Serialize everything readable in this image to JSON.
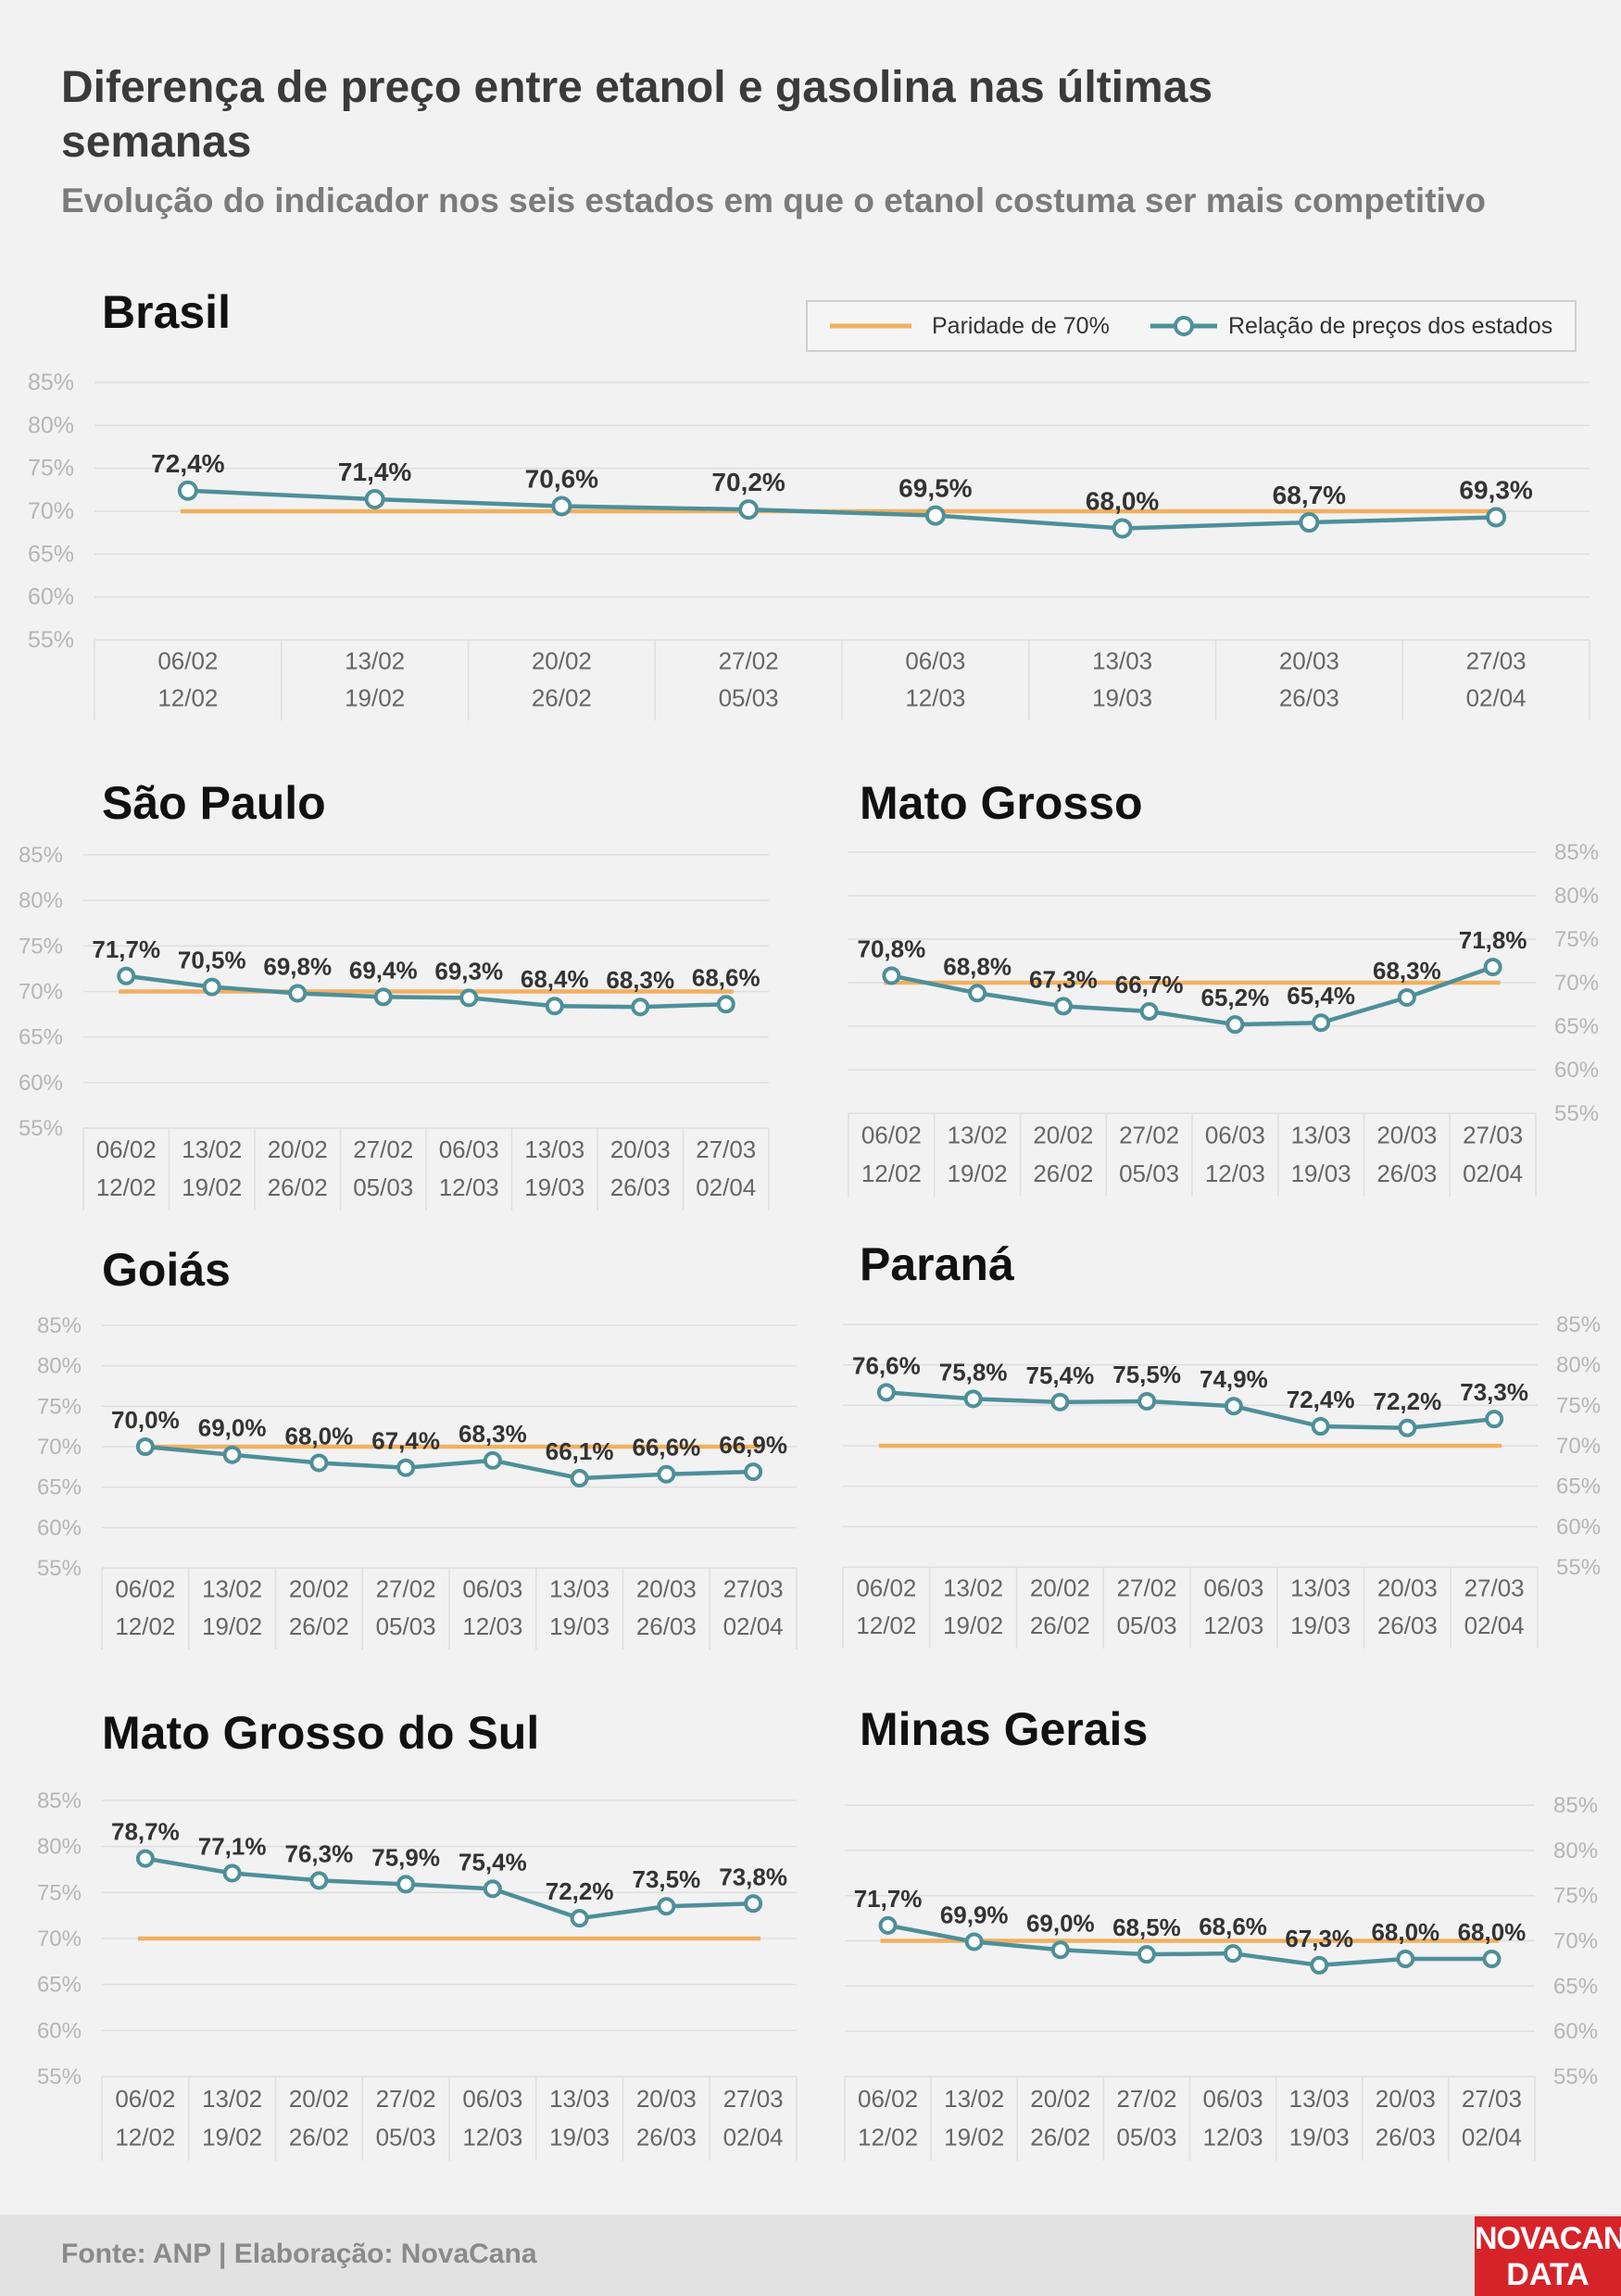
{
  "header": {
    "title": "Diferença de preço entre etanol e gasolina nas últimas semanas",
    "subtitle": "Evolução do indicador nos seis estados em que o etanol costuma ser mais competitivo"
  },
  "legend": {
    "parity_label": "Paridade de 70%",
    "series_label": "Relação de preços dos estados"
  },
  "colors": {
    "parity": "#f0b060",
    "series": "#4e8f99",
    "grid": "#dedede",
    "tick": "#b5b5b5",
    "category": "#666666",
    "value_label": "#333333"
  },
  "footer": {
    "source": "Fonte: ANP | Elaboração: NovaCana",
    "logo_line1": "NOVACANA",
    "logo_line2": "DATA"
  },
  "chart_data": [
    {
      "type": "line",
      "title": "Brasil",
      "categories": [
        "06/02 12/02",
        "13/02 19/02",
        "20/02 26/02",
        "27/02 05/03",
        "06/03 12/03",
        "13/03 19/03",
        "20/03 26/03",
        "27/03 02/04"
      ],
      "category_lines": [
        [
          "06/02",
          "12/02"
        ],
        [
          "13/02",
          "19/02"
        ],
        [
          "20/02",
          "26/02"
        ],
        [
          "27/02",
          "05/03"
        ],
        [
          "06/03",
          "12/03"
        ],
        [
          "13/03",
          "19/03"
        ],
        [
          "20/03",
          "26/03"
        ],
        [
          "27/03",
          "02/04"
        ]
      ],
      "series": [
        {
          "name": "Relação de preços dos estados",
          "values": [
            72.4,
            71.4,
            70.6,
            70.2,
            69.5,
            68.0,
            68.7,
            69.3
          ],
          "labels": [
            "72,4%",
            "71,4%",
            "70,6%",
            "70,2%",
            "69,5%",
            "68,0%",
            "68,7%",
            "69,3%"
          ]
        },
        {
          "name": "Paridade de 70%",
          "values": [
            70,
            70,
            70,
            70,
            70,
            70,
            70,
            70
          ]
        }
      ],
      "yticks": [
        "85%",
        "80%",
        "75%",
        "70%",
        "65%",
        "60%",
        "55%"
      ],
      "ylim": [
        55,
        85
      ],
      "grid": true,
      "legend": "top-right"
    },
    {
      "type": "line",
      "title": "São Paulo",
      "categories": [
        "06/02 12/02",
        "13/02 19/02",
        "20/02 26/02",
        "27/02 05/03",
        "06/03 12/03",
        "13/03 19/03",
        "20/03 26/03",
        "27/03 02/04"
      ],
      "category_lines": [
        [
          "06/02",
          "12/02"
        ],
        [
          "13/02",
          "19/02"
        ],
        [
          "20/02",
          "26/02"
        ],
        [
          "27/02",
          "05/03"
        ],
        [
          "06/03",
          "12/03"
        ],
        [
          "13/03",
          "19/03"
        ],
        [
          "20/03",
          "26/03"
        ],
        [
          "27/03",
          "02/04"
        ]
      ],
      "series": [
        {
          "name": "Relação de preços dos estados",
          "values": [
            71.7,
            70.5,
            69.8,
            69.4,
            69.3,
            68.4,
            68.3,
            68.6
          ],
          "labels": [
            "71,7%",
            "70,5%",
            "69,8%",
            "69,4%",
            "69,3%",
            "68,4%",
            "68,3%",
            "68,6%"
          ]
        },
        {
          "name": "Paridade de 70%",
          "values": [
            70,
            70,
            70,
            70,
            70,
            70,
            70,
            70
          ]
        }
      ],
      "yticks": [
        "85%",
        "80%",
        "75%",
        "70%",
        "65%",
        "60%",
        "55%"
      ],
      "ylim": [
        55,
        85
      ],
      "grid": true
    },
    {
      "type": "line",
      "title": "Mato Grosso",
      "categories": [
        "06/02 12/02",
        "13/02 19/02",
        "20/02 26/02",
        "27/02 05/03",
        "06/03 12/03",
        "13/03 19/03",
        "20/03 26/03",
        "27/03 02/04"
      ],
      "category_lines": [
        [
          "06/02",
          "12/02"
        ],
        [
          "13/02",
          "19/02"
        ],
        [
          "20/02",
          "26/02"
        ],
        [
          "27/02",
          "05/03"
        ],
        [
          "06/03",
          "12/03"
        ],
        [
          "13/03",
          "19/03"
        ],
        [
          "20/03",
          "26/03"
        ],
        [
          "27/03",
          "02/04"
        ]
      ],
      "series": [
        {
          "name": "Relação de preços dos estados",
          "values": [
            70.8,
            68.8,
            67.3,
            66.7,
            65.2,
            65.4,
            68.3,
            71.8
          ],
          "labels": [
            "70,8%",
            "68,8%",
            "67,3%",
            "66,7%",
            "65,2%",
            "65,4%",
            "68,3%",
            "71,8%"
          ]
        },
        {
          "name": "Paridade de 70%",
          "values": [
            70,
            70,
            70,
            70,
            70,
            70,
            70,
            70
          ]
        }
      ],
      "yticks": [
        "85%",
        "80%",
        "75%",
        "70%",
        "65%",
        "60%",
        "55%"
      ],
      "ylim": [
        55,
        85
      ],
      "grid": true
    },
    {
      "type": "line",
      "title": "Goiás",
      "categories": [
        "06/02 12/02",
        "13/02 19/02",
        "20/02 26/02",
        "27/02 05/03",
        "06/03 12/03",
        "13/03 19/03",
        "20/03 26/03",
        "27/03 02/04"
      ],
      "category_lines": [
        [
          "06/02",
          "12/02"
        ],
        [
          "13/02",
          "19/02"
        ],
        [
          "20/02",
          "26/02"
        ],
        [
          "27/02",
          "05/03"
        ],
        [
          "06/03",
          "12/03"
        ],
        [
          "13/03",
          "19/03"
        ],
        [
          "20/03",
          "26/03"
        ],
        [
          "27/03",
          "02/04"
        ]
      ],
      "series": [
        {
          "name": "Relação de preços dos estados",
          "values": [
            70.0,
            69.0,
            68.0,
            67.4,
            68.3,
            66.1,
            66.6,
            66.9
          ],
          "labels": [
            "70,0%",
            "69,0%",
            "68,0%",
            "67,4%",
            "68,3%",
            "66,1%",
            "66,6%",
            "66,9%"
          ]
        },
        {
          "name": "Paridade de 70%",
          "values": [
            70,
            70,
            70,
            70,
            70,
            70,
            70,
            70
          ]
        }
      ],
      "yticks": [
        "85%",
        "80%",
        "75%",
        "70%",
        "65%",
        "60%",
        "55%"
      ],
      "ylim": [
        55,
        85
      ],
      "grid": true
    },
    {
      "type": "line",
      "title": "Paraná",
      "categories": [
        "06/02 12/02",
        "13/02 19/02",
        "20/02 26/02",
        "27/02 05/03",
        "06/03 12/03",
        "13/03 19/03",
        "20/03 26/03",
        "27/03 02/04"
      ],
      "category_lines": [
        [
          "06/02",
          "12/02"
        ],
        [
          "13/02",
          "19/02"
        ],
        [
          "20/02",
          "26/02"
        ],
        [
          "27/02",
          "05/03"
        ],
        [
          "06/03",
          "12/03"
        ],
        [
          "13/03",
          "19/03"
        ],
        [
          "20/03",
          "26/03"
        ],
        [
          "27/03",
          "02/04"
        ]
      ],
      "series": [
        {
          "name": "Relação de preços dos estados",
          "values": [
            76.6,
            75.8,
            75.4,
            75.5,
            74.9,
            72.4,
            72.2,
            73.3
          ],
          "labels": [
            "76,6%",
            "75,8%",
            "75,4%",
            "75,5%",
            "74,9%",
            "72,4%",
            "72,2%",
            "73,3%"
          ]
        },
        {
          "name": "Paridade de 70%",
          "values": [
            70,
            70,
            70,
            70,
            70,
            70,
            70,
            70
          ]
        }
      ],
      "yticks": [
        "85%",
        "80%",
        "75%",
        "70%",
        "65%",
        "60%",
        "55%"
      ],
      "ylim": [
        55,
        85
      ],
      "grid": true
    },
    {
      "type": "line",
      "title": "Mato Grosso do Sul",
      "categories": [
        "06/02 12/02",
        "13/02 19/02",
        "20/02 26/02",
        "27/02 05/03",
        "06/03 12/03",
        "13/03 19/03",
        "20/03 26/03",
        "27/03 02/04"
      ],
      "category_lines": [
        [
          "06/02",
          "12/02"
        ],
        [
          "13/02",
          "19/02"
        ],
        [
          "20/02",
          "26/02"
        ],
        [
          "27/02",
          "05/03"
        ],
        [
          "06/03",
          "12/03"
        ],
        [
          "13/03",
          "19/03"
        ],
        [
          "20/03",
          "26/03"
        ],
        [
          "27/03",
          "02/04"
        ]
      ],
      "series": [
        {
          "name": "Relação de preços dos estados",
          "values": [
            78.7,
            77.1,
            76.3,
            75.9,
            75.4,
            72.2,
            73.5,
            73.8
          ],
          "labels": [
            "78,7%",
            "77,1%",
            "76,3%",
            "75,9%",
            "75,4%",
            "72,2%",
            "73,5%",
            "73,8%"
          ]
        },
        {
          "name": "Paridade de 70%",
          "values": [
            70,
            70,
            70,
            70,
            70,
            70,
            70,
            70
          ]
        }
      ],
      "yticks": [
        "85%",
        "80%",
        "75%",
        "70%",
        "65%",
        "60%",
        "55%"
      ],
      "ylim": [
        55,
        85
      ],
      "grid": true
    },
    {
      "type": "line",
      "title": "Minas Gerais",
      "categories": [
        "06/02 12/02",
        "13/02 19/02",
        "20/02 26/02",
        "27/02 05/03",
        "06/03 12/03",
        "13/03 19/03",
        "20/03 26/03",
        "27/03 02/04"
      ],
      "category_lines": [
        [
          "06/02",
          "12/02"
        ],
        [
          "13/02",
          "19/02"
        ],
        [
          "20/02",
          "26/02"
        ],
        [
          "27/02",
          "05/03"
        ],
        [
          "06/03",
          "12/03"
        ],
        [
          "13/03",
          "19/03"
        ],
        [
          "20/03",
          "26/03"
        ],
        [
          "27/03",
          "02/04"
        ]
      ],
      "series": [
        {
          "name": "Relação de preços dos estados",
          "values": [
            71.7,
            69.9,
            69.0,
            68.5,
            68.6,
            67.3,
            68.0,
            68.0
          ],
          "labels": [
            "71,7%",
            "69,9%",
            "69,0%",
            "68,5%",
            "68,6%",
            "67,3%",
            "68,0%",
            "68,0%"
          ]
        },
        {
          "name": "Paridade de 70%",
          "values": [
            70,
            70,
            70,
            70,
            70,
            70,
            70,
            70
          ]
        }
      ],
      "yticks": [
        "85%",
        "80%",
        "75%",
        "70%",
        "65%",
        "60%",
        "55%"
      ],
      "ylim": [
        55,
        85
      ],
      "grid": true
    }
  ]
}
